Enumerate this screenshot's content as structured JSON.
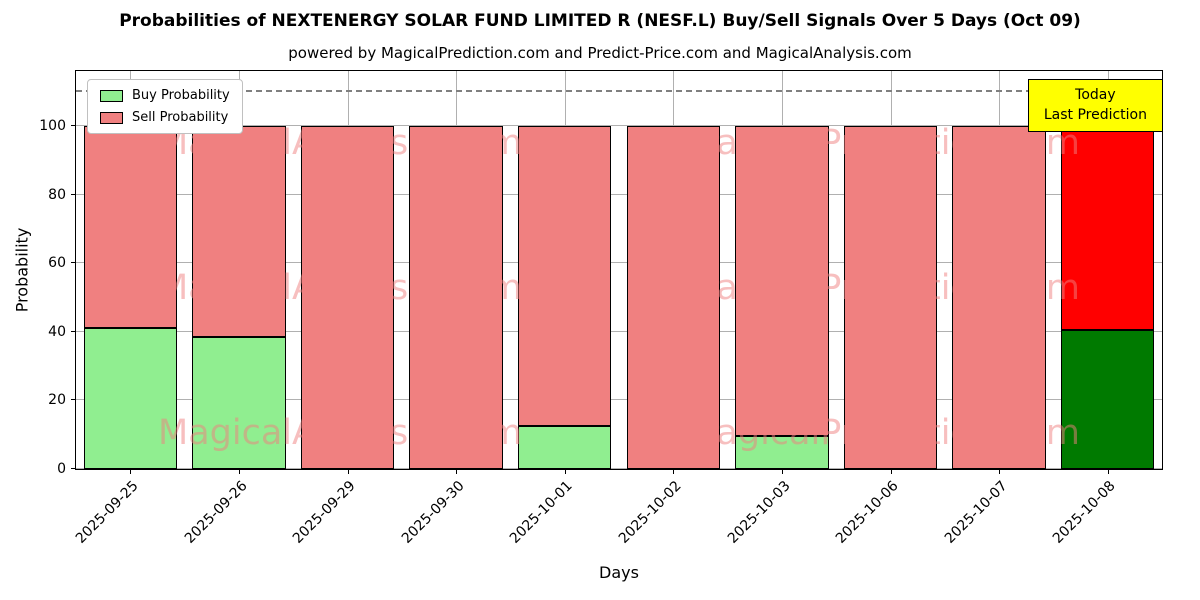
{
  "title": "Probabilities of NEXTENERGY SOLAR FUND LIMITED R (NESF.L) Buy/Sell Signals Over 5 Days (Oct 09)",
  "subtitle": "powered by MagicalPrediction.com and Predict-Price.com and MagicalAnalysis.com",
  "chart_data": {
    "type": "bar",
    "stacked": true,
    "title": "Probabilities of NEXTENERGY SOLAR FUND LIMITED R (NESF.L) Buy/Sell Signals Over 5 Days (Oct 09)",
    "xlabel": "Days",
    "ylabel": "Probability",
    "categories": [
      "2025-09-25",
      "2025-09-26",
      "2025-09-29",
      "2025-09-30",
      "2025-10-01",
      "2025-10-02",
      "2025-10-03",
      "2025-10-06",
      "2025-10-07",
      "2025-10-08"
    ],
    "series": [
      {
        "name": "Buy Probability",
        "values": [
          41,
          38.5,
          0,
          0,
          12.5,
          0,
          9.5,
          0,
          0,
          40.5
        ]
      },
      {
        "name": "Sell Probability",
        "values": [
          59,
          61.5,
          100,
          100,
          87.5,
          100,
          90.5,
          100,
          100,
          59.5
        ]
      }
    ],
    "ylim": [
      0,
      116
    ],
    "yticks": [
      0,
      20,
      40,
      60,
      80,
      100
    ],
    "dashed_line_y": 110,
    "grid": true,
    "legend_position": "upper left",
    "bar_width_fraction": 0.86,
    "today_index": 9
  },
  "colors": {
    "buy": "#90EE90",
    "sell": "#F08080",
    "today_buy": "#007A00",
    "today_sell": "#FF0000",
    "bar_edge": "#000000",
    "grid": "#b0b0b0",
    "dashed_line": "#7f7f7f",
    "annotation_bg": "#FFFF00",
    "watermark": "#F08080"
  },
  "legend": {
    "items": [
      {
        "label": "Buy Probability",
        "color_key": "buy"
      },
      {
        "label": "Sell Probability",
        "color_key": "sell"
      }
    ]
  },
  "annotation": {
    "line1": "Today",
    "line2": "Last Prediction"
  },
  "watermarks": {
    "left": "MagicalAnalysis.com",
    "right": "MagicalPrediction.com",
    "row_tops_pct": [
      13,
      49.5,
      86
    ]
  }
}
